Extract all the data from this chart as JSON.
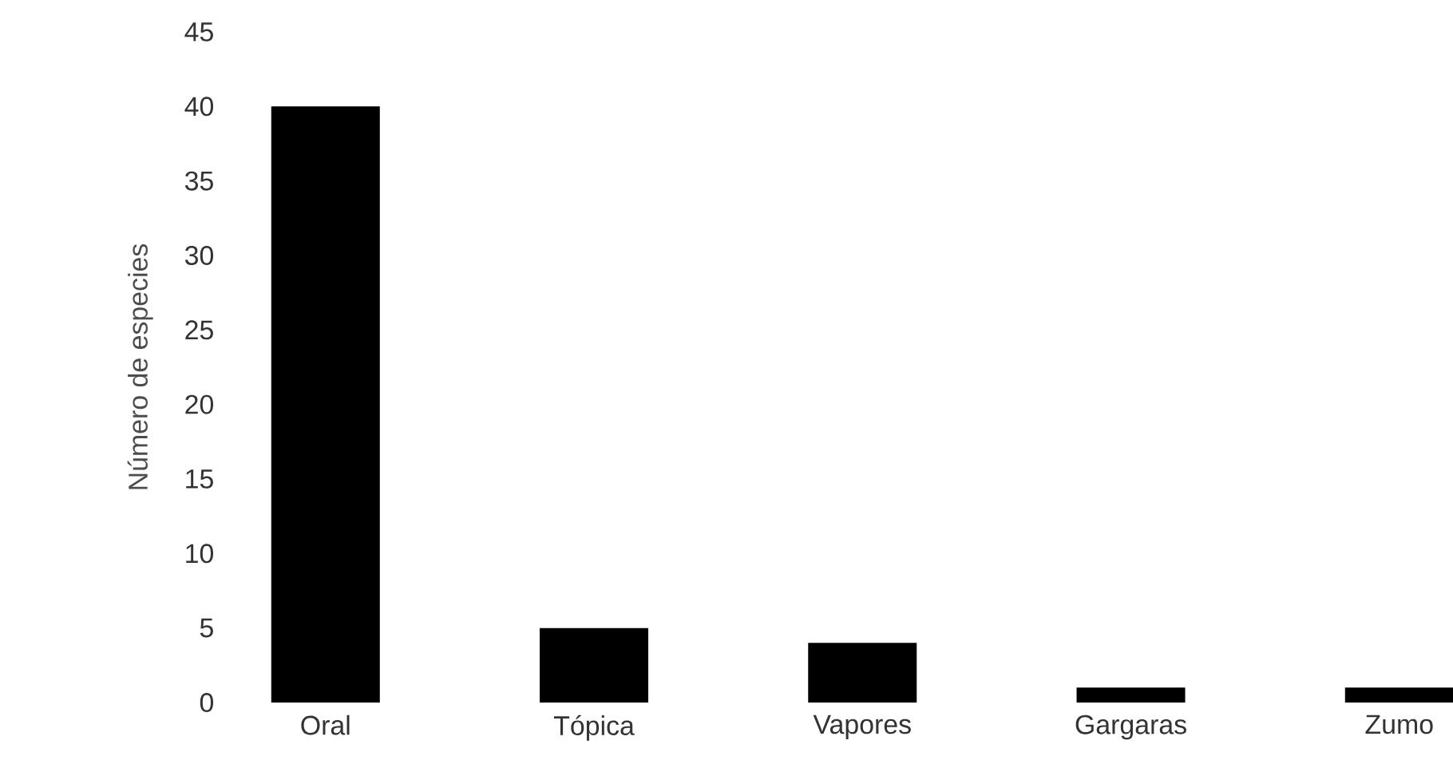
{
  "chart_data": {
    "type": "bar",
    "ylabel": "Número de especies",
    "categories": [
      "Oral",
      "Tópica",
      "Vapores",
      "Gargaras",
      "Zumo"
    ],
    "values": [
      40,
      5,
      4,
      1,
      1
    ],
    "color": "#000000",
    "ylim": [
      0,
      45
    ],
    "yticks": [
      0,
      5,
      10,
      15,
      20,
      25,
      30,
      35,
      40,
      45
    ],
    "grid": false
  }
}
